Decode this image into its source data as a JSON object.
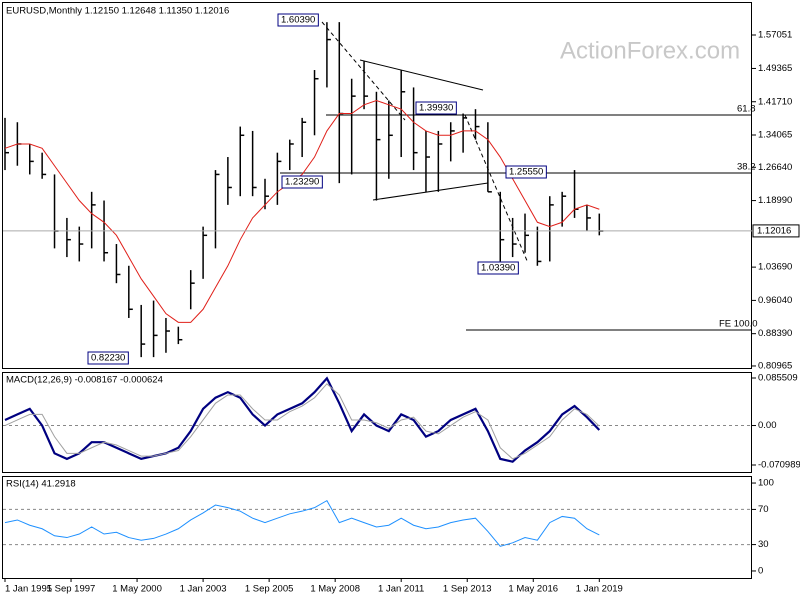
{
  "chart_data": [
    {
      "type": "ohlc",
      "title": "EURUSD,Monthly  1.12150 1.12648 1.11350 1.12016",
      "watermark": "ActionForex.com",
      "x": [
        "1995-01",
        "1995-07",
        "1996-01",
        "1996-07",
        "1997-01",
        "1997-07",
        "1998-01",
        "1998-07",
        "1999-01",
        "1999-07",
        "2000-01",
        "2000-07",
        "2001-01",
        "2001-07",
        "2002-01",
        "2002-07",
        "2003-01",
        "2003-07",
        "2004-01",
        "2004-07",
        "2005-01",
        "2005-07",
        "2006-01",
        "2006-07",
        "2007-01",
        "2007-07",
        "2008-01",
        "2008-07",
        "2009-01",
        "2009-07",
        "2010-01",
        "2010-07",
        "2011-01",
        "2011-07",
        "2012-01",
        "2012-07",
        "2013-01",
        "2013-07",
        "2014-01",
        "2014-07",
        "2015-01",
        "2015-07",
        "2016-01",
        "2016-07",
        "2017-01",
        "2017-07",
        "2018-01",
        "2018-07",
        "2019-01"
      ],
      "high": [
        1.38,
        1.37,
        1.32,
        1.3,
        1.25,
        1.15,
        1.13,
        1.21,
        1.19,
        1.09,
        1.04,
        0.95,
        0.96,
        0.92,
        0.9,
        1.03,
        1.13,
        1.26,
        1.29,
        1.36,
        1.35,
        1.24,
        1.3,
        1.33,
        1.38,
        1.49,
        1.6,
        1.6,
        1.47,
        1.51,
        1.44,
        1.42,
        1.49,
        1.45,
        1.35,
        1.35,
        1.37,
        1.39,
        1.4,
        1.37,
        1.21,
        1.15,
        1.16,
        1.13,
        1.2,
        1.21,
        1.26,
        1.18,
        1.16
      ],
      "low": [
        1.26,
        1.27,
        1.25,
        1.24,
        1.08,
        1.06,
        1.05,
        1.08,
        1.05,
        1.0,
        0.92,
        0.83,
        0.83,
        0.84,
        0.86,
        0.94,
        1.01,
        1.08,
        1.18,
        1.2,
        1.2,
        1.17,
        1.18,
        1.26,
        1.29,
        1.34,
        1.45,
        1.23,
        1.25,
        1.4,
        1.19,
        1.24,
        1.29,
        1.26,
        1.21,
        1.21,
        1.28,
        1.3,
        1.33,
        1.21,
        1.05,
        1.06,
        1.07,
        1.04,
        1.05,
        1.13,
        1.15,
        1.12,
        1.11
      ],
      "close": [
        1.3,
        1.32,
        1.28,
        1.25,
        1.12,
        1.1,
        1.09,
        1.18,
        1.07,
        1.02,
        0.94,
        0.86,
        0.88,
        0.89,
        0.87,
        1.0,
        1.11,
        1.25,
        1.22,
        1.34,
        1.22,
        1.2,
        1.28,
        1.32,
        1.37,
        1.47,
        1.56,
        1.39,
        1.43,
        1.43,
        1.33,
        1.34,
        1.44,
        1.3,
        1.29,
        1.32,
        1.35,
        1.38,
        1.36,
        1.21,
        1.1,
        1.09,
        1.11,
        1.05,
        1.18,
        1.2,
        1.17,
        1.15,
        1.12
      ],
      "bar_color": "#000000",
      "ma": {
        "color": "#e0201a",
        "values": [
          1.31,
          1.32,
          1.32,
          1.31,
          1.27,
          1.23,
          1.19,
          1.16,
          1.14,
          1.11,
          1.06,
          1.01,
          0.97,
          0.93,
          0.91,
          0.91,
          0.94,
          0.99,
          1.04,
          1.1,
          1.15,
          1.18,
          1.21,
          1.23,
          1.25,
          1.29,
          1.35,
          1.39,
          1.39,
          1.41,
          1.42,
          1.41,
          1.4,
          1.37,
          1.35,
          1.34,
          1.34,
          1.35,
          1.35,
          1.33,
          1.29,
          1.24,
          1.19,
          1.14,
          1.13,
          1.14,
          1.17,
          1.18,
          1.17
        ]
      },
      "last_price": 1.12016,
      "annotations": [
        "1.60390",
        "1.39930",
        "1.25550",
        "1.23290",
        "1.03390",
        "0.82230",
        "61.8",
        "38.2",
        "FE 100.0"
      ],
      "xlim": [
        "1995-01",
        "2025-03"
      ],
      "xticks": [
        {
          "value": "1995-01",
          "label": "1 Jan 1995"
        },
        {
          "value": "1997-09",
          "label": "1 Sep 1997"
        },
        {
          "value": "2000-05",
          "label": "1 May 2000"
        },
        {
          "value": "2003-01",
          "label": "1 Jan 2003"
        },
        {
          "value": "2005-09",
          "label": "1 Sep 2005"
        },
        {
          "value": "2008-05",
          "label": "1 May 2008"
        },
        {
          "value": "2011-01",
          "label": "1 Jan 2011"
        },
        {
          "value": "2013-09",
          "label": "1 Sep 2013"
        },
        {
          "value": "2016-05",
          "label": "1 May 2016"
        },
        {
          "value": "2019-01",
          "label": "1 Jan 2019"
        }
      ],
      "ylim": [
        0.805,
        1.6464
      ],
      "yticks": [
        1.57051,
        1.49365,
        {
          "value": 1.4171,
          "label": "1.41710"
        },
        1.34065,
        {
          "value": 1.2664,
          "label": "1.26640"
        },
        {
          "value": 1.1899,
          "label": "1.18990"
        },
        {
          "value": 1.0369,
          "label": "1.03690"
        },
        {
          "value": 0.9604,
          "label": "0.96040"
        },
        {
          "value": 0.8839,
          "label": "0.88390"
        },
        0.80965
      ]
    },
    {
      "type": "line",
      "title": "MACD(12,26,9) -0.008167 -0.000624",
      "series": [
        {
          "color": "#000080",
          "values": [
            0.01,
            0.02,
            0.03,
            0.0,
            -0.05,
            -0.06,
            -0.05,
            -0.03,
            -0.03,
            -0.04,
            -0.05,
            -0.06,
            -0.055,
            -0.05,
            -0.04,
            -0.01,
            0.03,
            0.05,
            0.06,
            0.05,
            0.02,
            0.0,
            0.02,
            0.03,
            0.04,
            0.06,
            0.085,
            0.04,
            -0.01,
            0.02,
            0.0,
            -0.01,
            0.02,
            0.01,
            -0.02,
            -0.01,
            0.01,
            0.02,
            0.03,
            -0.01,
            -0.06,
            -0.065,
            -0.045,
            -0.03,
            -0.01,
            0.02,
            0.035,
            0.015,
            -0.008
          ]
        },
        {
          "color": "#a0a0a0",
          "values": [
            0.0,
            0.01,
            0.02,
            0.02,
            -0.02,
            -0.05,
            -0.05,
            -0.04,
            -0.03,
            -0.035,
            -0.045,
            -0.055,
            -0.055,
            -0.05,
            -0.045,
            -0.02,
            0.01,
            0.04,
            0.055,
            0.055,
            0.03,
            0.01,
            0.01,
            0.025,
            0.035,
            0.05,
            0.075,
            0.055,
            0.01,
            0.01,
            0.005,
            -0.005,
            0.01,
            0.015,
            -0.01,
            -0.015,
            0.0,
            0.015,
            0.025,
            0.01,
            -0.04,
            -0.06,
            -0.05,
            -0.035,
            -0.02,
            0.01,
            0.03,
            0.02,
            -0.001
          ]
        }
      ],
      "ylim": [
        -0.0836,
        0.0963
      ],
      "yticks": [
        0.085509,
        {
          "value": 0,
          "label": "0.00"
        },
        -0.070989
      ]
    },
    {
      "type": "line",
      "title": "RSI(14) 41.2918",
      "series": [
        {
          "color": "#1e90ff",
          "values": [
            55,
            58,
            52,
            48,
            40,
            38,
            42,
            50,
            42,
            44,
            38,
            35,
            37,
            42,
            48,
            58,
            66,
            75,
            72,
            68,
            60,
            55,
            60,
            65,
            68,
            72,
            80,
            55,
            60,
            55,
            50,
            52,
            60,
            52,
            48,
            50,
            55,
            58,
            60,
            45,
            28,
            32,
            38,
            35,
            55,
            62,
            60,
            48,
            41
          ]
        }
      ],
      "ylim": [
        -8,
        108
      ],
      "yticks": [
        100,
        70,
        30,
        0
      ]
    }
  ]
}
